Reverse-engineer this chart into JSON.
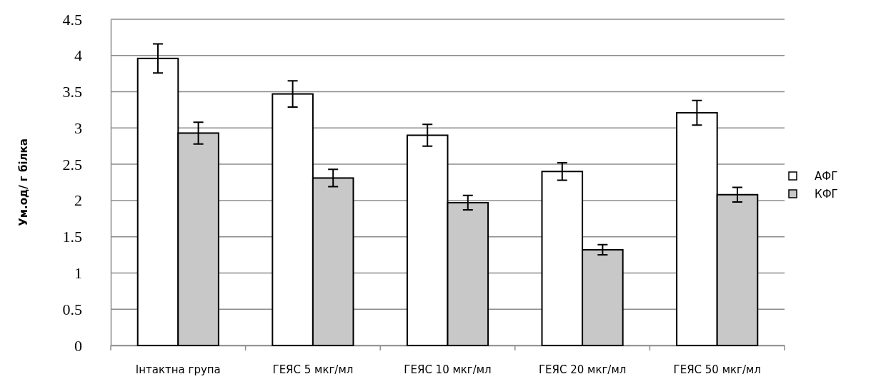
{
  "chart_data": {
    "type": "bar",
    "ylabel": "Ум.од/ г білка",
    "categories": [
      "Інтактна група",
      "ГЕЯС 5 мкг/мл",
      "ГЕЯС 10 мкг/мл",
      "ГЕЯС  20 мкг/мл",
      "ГЕЯС 50 мкг/мл"
    ],
    "series": [
      {
        "name": "АФГ",
        "color": "#ffffff",
        "values": [
          3.96,
          3.47,
          2.9,
          2.4,
          3.21
        ],
        "errors": [
          0.2,
          0.18,
          0.15,
          0.12,
          0.17
        ]
      },
      {
        "name": "КФГ",
        "color": "#c8c8c8",
        "values": [
          2.93,
          2.31,
          1.97,
          1.32,
          2.08
        ],
        "errors": [
          0.15,
          0.12,
          0.1,
          0.07,
          0.1
        ]
      }
    ],
    "ylim": [
      0,
      4.5
    ],
    "yticks": [
      0,
      0.5,
      1,
      1.5,
      2,
      2.5,
      3,
      3.5,
      4,
      4.5
    ],
    "grid": "y",
    "legend": "right"
  }
}
